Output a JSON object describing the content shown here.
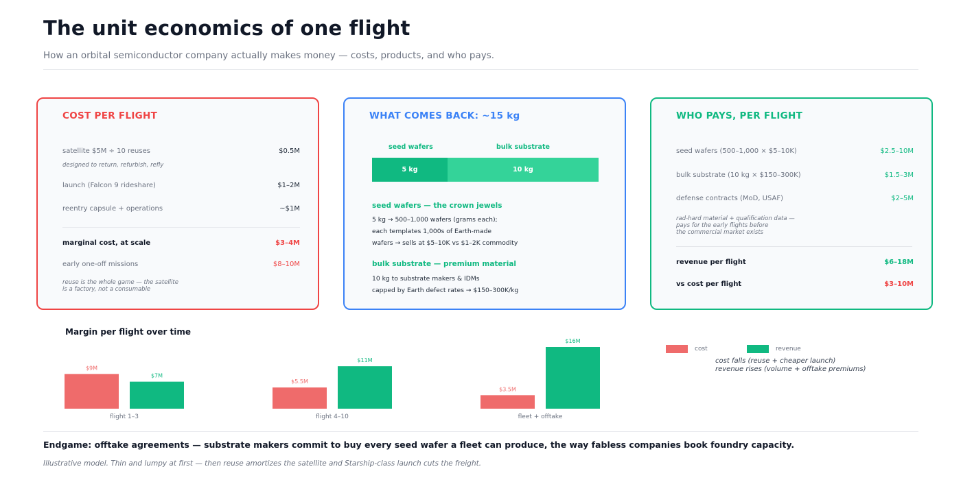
{
  "header": {
    "title": "The unit economics of one flight",
    "subtitle": "How an orbital semiconductor company actually makes money — costs, products, and who pays."
  },
  "cost_card": {
    "title": "COST PER FLIGHT",
    "rows": [
      {
        "label": "satellite  $5M ÷ 10 reuses",
        "value": "$0.5M"
      },
      {
        "label": "launch (Falcon 9 rideshare)",
        "value": "$1–2M"
      },
      {
        "label": "reentry capsule + operations",
        "value": "~$1M"
      },
      {
        "label": "marginal cost, at scale",
        "value": "$3–4M"
      },
      {
        "label": "early one-off missions",
        "value": "$8–10M"
      }
    ],
    "satellite_note": "designed to return, refurbish, refly",
    "footer_note_1": "reuse is the whole game — the satellite",
    "footer_note_2": "is a factory, not a consumable"
  },
  "return_card": {
    "title": "WHAT COMES BACK: ~15 kg",
    "seed_label": "seed wafers",
    "bulk_label": "bulk substrate",
    "seed_amount": "5 kg",
    "bulk_amount": "10 kg",
    "seed_kg": 5,
    "bulk_kg": 10,
    "seed_heading": "seed wafers — the crown jewels",
    "seed_lines": [
      "5 kg → 500–1,000 wafers (grams each);",
      "each templates 1,000s of Earth-made",
      "wafers → sells at $5–10K vs $1–2K commodity"
    ],
    "bulk_heading": "bulk substrate — premium material",
    "bulk_lines": [
      "10 kg to substrate makers & IDMs",
      "capped by Earth defect rates → $150–300K/kg"
    ]
  },
  "pays_card": {
    "title": "WHO PAYS, PER FLIGHT",
    "rows": [
      {
        "label": "seed wafers (500–1,000 × $5–10K)",
        "value": "$2.5–10M"
      },
      {
        "label": "bulk substrate (10 kg × $150–300K)",
        "value": "$1.5–3M"
      },
      {
        "label": "defense contracts (MoD, USAF)",
        "value": "$2–5M"
      },
      {
        "label": "revenue per flight",
        "value": "$6–18M"
      },
      {
        "label": "vs cost per flight",
        "value": "$3–10M"
      }
    ],
    "defense_note_1": "rad-hard material + qualification data —",
    "defense_note_2": "pays for the early flights before",
    "defense_note_3": "the commercial market exists"
  },
  "chart_data": {
    "type": "bar",
    "title": "Margin per flight over time",
    "categories": [
      "flight 1–3",
      "flight 4–10",
      "fleet + offtake"
    ],
    "series": [
      {
        "name": "cost",
        "values": [
          9,
          5.5,
          3.5
        ],
        "labels": [
          "$9M",
          "$5.5M",
          "$3.5M"
        ],
        "color": "#ef6b6b"
      },
      {
        "name": "revenue",
        "values": [
          7,
          11,
          16
        ],
        "labels": [
          "$7M",
          "$11M",
          "$16M"
        ],
        "color": "#10b981"
      }
    ],
    "ylim": [
      0,
      16
    ],
    "legend_note_1": "cost falls (reuse + cheaper launch)",
    "legend_note_2": "revenue rises (volume + offtake premiums)"
  },
  "footer": {
    "endgame": "Endgame: offtake agreements — substrate makers commit to buy every seed wafer a fleet can produce, the way fabless companies book foundry capacity.",
    "note": "Illustrative model. Thin and lumpy at first — then reuse amortizes the satellite and Starship-class launch cuts the freight."
  }
}
